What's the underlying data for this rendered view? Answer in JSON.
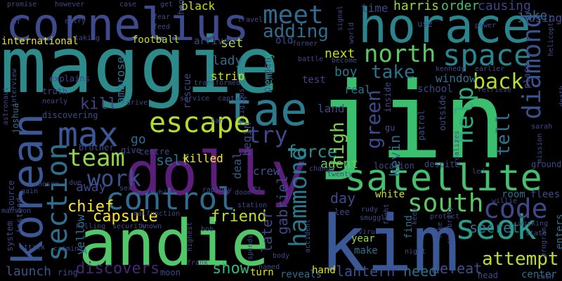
{
  "word_cloud": {
    "background": "#000000",
    "words": [
      {
        "text": "maggie",
        "color": "#2c8a8b"
      },
      {
        "text": "jin",
        "color": "#3bbf6e"
      },
      {
        "text": "kim",
        "color": "#3b5896"
      },
      {
        "text": "horace",
        "color": "#2a848e"
      },
      {
        "text": "andie",
        "color": "#52c769"
      },
      {
        "text": "dolly",
        "color": "#5a1f7a"
      },
      {
        "text": "cornelius",
        "color": "#3d4b8c"
      },
      {
        "text": "korean",
        "color": "#3b5896"
      },
      {
        "text": "tae",
        "color": "#2b7a8e"
      },
      {
        "text": "satellite",
        "color": "#45be6f"
      },
      {
        "text": "max",
        "color": "#3b5896"
      },
      {
        "text": "control",
        "color": "#2f6c8e"
      },
      {
        "text": "section",
        "color": "#2e6f8e"
      },
      {
        "text": "seok",
        "color": "#2a9a8a"
      },
      {
        "text": "escape",
        "color": "#b4de2c"
      },
      {
        "text": "code",
        "color": "#3f4889"
      },
      {
        "text": "meet",
        "color": "#2f6b8e"
      },
      {
        "text": "space",
        "color": "#2a848e"
      },
      {
        "text": "north",
        "color": "#5cc863"
      },
      {
        "text": "diamond",
        "color": "#3b518b"
      },
      {
        "text": "south",
        "color": "#5cc863"
      },
      {
        "text": "team",
        "color": "#90d743"
      },
      {
        "text": "hammond",
        "color": "#2a788e"
      },
      {
        "text": "back",
        "color": "#b8de29"
      },
      {
        "text": "help",
        "color": "#2ab07f"
      },
      {
        "text": "work",
        "color": "#3b518b"
      },
      {
        "text": "try",
        "color": "#3f4889"
      },
      {
        "text": "take",
        "color": "#2c728e"
      },
      {
        "text": "green",
        "color": "#3e4a89"
      },
      {
        "text": "adding",
        "color": "#2f6c8e"
      },
      {
        "text": "attempt",
        "color": "#b8de29"
      },
      {
        "text": "force",
        "color": "#2c8a8b"
      },
      {
        "text": "tell",
        "color": "#2a768e"
      },
      {
        "text": "high",
        "color": "#7ad151"
      },
      {
        "text": "friend",
        "color": "#c2df23"
      },
      {
        "text": "capsule",
        "color": "#fde725"
      },
      {
        "text": "discovers",
        "color": "#482576"
      },
      {
        "text": "show",
        "color": "#35b779"
      },
      {
        "text": "kill",
        "color": "#414287"
      },
      {
        "text": "chief",
        "color": "#fde725"
      },
      {
        "text": "self",
        "color": "#2f6c8e"
      },
      {
        "text": "day",
        "color": "#3e4a89"
      },
      {
        "text": "away",
        "color": "#3e4a89"
      },
      {
        "text": "later",
        "color": "#3f4889"
      },
      {
        "text": "gabriel",
        "color": "#3e4989"
      },
      {
        "text": "kevin",
        "color": "#31678e"
      },
      {
        "text": "secret",
        "color": "#2a788e"
      },
      {
        "text": "defeat",
        "color": "#3b518b"
      },
      {
        "text": "lantern",
        "color": "#3b518b"
      },
      {
        "text": "need",
        "color": "#2e6d8e"
      },
      {
        "text": "launch",
        "color": "#3a538b"
      },
      {
        "text": "set",
        "color": "#b8de29"
      },
      {
        "text": "next",
        "color": "#bddf26"
      },
      {
        "text": "boy",
        "color": "#297b8e"
      },
      {
        "text": "lady",
        "color": "#2f6c8e"
      },
      {
        "text": "memory",
        "color": "#26ad81"
      },
      {
        "text": "ambrose",
        "color": "#2c728e"
      },
      {
        "text": "yellow",
        "color": "#2c728e"
      },
      {
        "text": "agent",
        "color": "#65cb5e"
      },
      {
        "text": "go",
        "color": "#31688e"
      },
      {
        "text": "killed",
        "color": "#fde725"
      },
      {
        "text": "time",
        "color": "#3f4889"
      },
      {
        "text": "harris",
        "color": "#9bd93c"
      },
      {
        "text": "order",
        "color": "#48c16e"
      },
      {
        "text": "causing",
        "color": "#414487"
      },
      {
        "text": "jake",
        "color": "#2c728e"
      },
      {
        "text": "using",
        "color": "#3e4a89"
      },
      {
        "text": "school",
        "color": "#3e4989"
      },
      {
        "text": "window",
        "color": "#2c728e"
      },
      {
        "text": "land",
        "color": "#3e4a89"
      },
      {
        "text": "crew",
        "color": "#3b528b"
      },
      {
        "text": "deal",
        "color": "#38598c"
      },
      {
        "text": "begin",
        "color": "#3e4a89"
      },
      {
        "text": "strip",
        "color": "#cde11d"
      },
      {
        "text": "rescue",
        "color": "#3f4889"
      },
      {
        "text": "real",
        "color": "#2c728e"
      },
      {
        "text": "test",
        "color": "#414487"
      },
      {
        "text": "oxygen",
        "color": "#3f4889"
      },
      {
        "text": "find",
        "color": "#2c728e"
      },
      {
        "text": "make",
        "color": "#2c728e"
      },
      {
        "text": "year",
        "color": "#8fd744"
      },
      {
        "text": "white",
        "color": "#c8e020"
      },
      {
        "text": "room",
        "color": "#2e6d8e"
      },
      {
        "text": "flees",
        "color": "#3f4889"
      },
      {
        "text": "enters",
        "color": "#2c728e"
      },
      {
        "text": "center",
        "color": "#2c728e"
      },
      {
        "text": "hand",
        "color": "#e5e419"
      },
      {
        "text": "turn",
        "color": "#ddE318"
      },
      {
        "text": "reveals",
        "color": "#2e6d8e"
      },
      {
        "text": "football",
        "color": "#c2df23"
      },
      {
        "text": "arrives",
        "color": "#3f4889"
      },
      {
        "text": "black",
        "color": "#c8e020"
      },
      {
        "text": "old",
        "color": "#3f4889"
      },
      {
        "text": "international",
        "color": "#e5e419"
      },
      {
        "text": "mr",
        "color": "#3f4889"
      },
      {
        "text": "explains",
        "color": "#3f4889"
      },
      {
        "text": "truth",
        "color": "#3f4889"
      },
      {
        "text": "discovering",
        "color": "#3e4a89"
      },
      {
        "text": "joshua",
        "color": "#2c728e"
      },
      {
        "text": "brother",
        "color": "#3f4889"
      },
      {
        "text": "give",
        "color": "#3f4889"
      },
      {
        "text": "centre",
        "color": "#3f4889"
      },
      {
        "text": "location",
        "color": "#3e4a89"
      },
      {
        "text": "despite",
        "color": "#3f4889"
      },
      {
        "text": "ground",
        "color": "#3f4889"
      },
      {
        "text": "ring",
        "color": "#3e4a89"
      },
      {
        "text": "moon",
        "color": "#3f4889"
      },
      {
        "text": "source",
        "color": "#3f4889"
      },
      {
        "text": "instead",
        "color": "#3f4889"
      },
      {
        "text": "system",
        "color": "#3e4a89"
      },
      {
        "text": "gain",
        "color": "#3e4a89"
      },
      {
        "text": "due",
        "color": "#3e4a89"
      },
      {
        "text": "sex",
        "color": "#3e4a89"
      },
      {
        "text": "lee",
        "color": "#3f4889"
      },
      {
        "text": "rudy",
        "color": "#3e4a89"
      },
      {
        "text": "virus",
        "color": "#3e4a89"
      },
      {
        "text": "protect",
        "color": "#3e4a89"
      },
      {
        "text": "bob",
        "color": "#3e4a89"
      },
      {
        "text": "frank",
        "color": "#3e4a89"
      },
      {
        "text": "mansion",
        "color": "#3e4a89"
      },
      {
        "text": "shoot",
        "color": "#3e4a89"
      },
      {
        "text": "travel",
        "color": "#3e4a89"
      },
      {
        "text": "signal",
        "color": "#3e4a89"
      },
      {
        "text": "battle",
        "color": "#3e4a89"
      },
      {
        "text": "use",
        "color": "#3e4a89"
      },
      {
        "text": "inside",
        "color": "#3e4a89"
      },
      {
        "text": "patrol",
        "color": "#3e4a89"
      },
      {
        "text": "outside",
        "color": "#3e4a89"
      },
      {
        "text": "gu",
        "color": "#3e4a89"
      },
      {
        "text": "place",
        "color": "#3e4a89"
      },
      {
        "text": "working",
        "color": "#3e4a89"
      },
      {
        "text": "state",
        "color": "#3e4a89"
      },
      {
        "text": "promise",
        "color": "#3e4a89"
      },
      {
        "text": "however",
        "color": "#3e4a89"
      },
      {
        "text": "case",
        "color": "#3e4a89"
      },
      {
        "text": "get",
        "color": "#3e4a89"
      },
      {
        "text": "fear",
        "color": "#3e4a89"
      },
      {
        "text": "feed",
        "color": "#3e4a89"
      },
      {
        "text": "entry",
        "color": "#3e4a89"
      },
      {
        "text": "taking",
        "color": "#3e4a89"
      },
      {
        "text": "nearly",
        "color": "#3e4a89"
      },
      {
        "text": "attack",
        "color": "#3e4a89"
      },
      {
        "text": "interview",
        "color": "#3e4a89"
      },
      {
        "text": "astronaut",
        "color": "#3e4a89"
      },
      {
        "text": "chosen",
        "color": "#3e4a89"
      },
      {
        "text": "drive",
        "color": "#3e4a89"
      },
      {
        "text": "service",
        "color": "#3e4a89"
      },
      {
        "text": "fan",
        "color": "#3e4a89"
      },
      {
        "text": "capture",
        "color": "#3e4a89"
      },
      {
        "text": "religious",
        "color": "#3e4a89"
      },
      {
        "text": "transformed",
        "color": "#3e4a89"
      },
      {
        "text": "former",
        "color": "#3e4a89"
      },
      {
        "text": "become",
        "color": "#3e4a89"
      },
      {
        "text": "kennedy",
        "color": "#3e4a89"
      },
      {
        "text": "earlier",
        "color": "#3e4a89"
      },
      {
        "text": "retrieve",
        "color": "#3e4a89"
      },
      {
        "text": "power",
        "color": "#3e4a89"
      },
      {
        "text": "world",
        "color": "#3e4a89"
      },
      {
        "text": "helicopter",
        "color": "#3e4a89"
      },
      {
        "text": "sarah",
        "color": "#3e4a89"
      },
      {
        "text": "mission",
        "color": "#3e4a89"
      },
      {
        "text": "realizes",
        "color": "#3e4a89"
      },
      {
        "text": "twenty",
        "color": "#3e4a89"
      },
      {
        "text": "change",
        "color": "#3e4a89"
      },
      {
        "text": "led",
        "color": "#3e4a89"
      },
      {
        "text": "doom",
        "color": "#3e4a89"
      },
      {
        "text": "station",
        "color": "#3e4a89"
      },
      {
        "text": "ex",
        "color": "#3e4a89"
      },
      {
        "text": "rapidly",
        "color": "#3e4a89"
      },
      {
        "text": "meanwhile",
        "color": "#3e4a89"
      },
      {
        "text": "malfunction",
        "color": "#3e4a89"
      },
      {
        "text": "security",
        "color": "#3e4a89"
      },
      {
        "text": "killing",
        "color": "#3e4a89"
      },
      {
        "text": "known",
        "color": "#3e4a89"
      },
      {
        "text": "criminal",
        "color": "#3e4a89"
      },
      {
        "text": "highest",
        "color": "#3e4a89"
      },
      {
        "text": "spends",
        "color": "#3e4a89"
      },
      {
        "text": "named",
        "color": "#3e4a89"
      },
      {
        "text": "body",
        "color": "#3e4a89"
      },
      {
        "text": "accident",
        "color": "#3e4a89"
      },
      {
        "text": "smuggler",
        "color": "#3e4a89"
      },
      {
        "text": "night",
        "color": "#3e4a89"
      },
      {
        "text": "fake",
        "color": "#3e4a89"
      },
      {
        "text": "celebrity",
        "color": "#3e4a89"
      },
      {
        "text": "head",
        "color": "#3e4a89"
      },
      {
        "text": "program",
        "color": "#3e4a89"
      },
      {
        "text": "zach",
        "color": "#3e4a89"
      },
      {
        "text": "willie",
        "color": "#3e4a89"
      },
      {
        "text": "death",
        "color": "#3e4a89"
      },
      {
        "text": "keep",
        "color": "#3e4a89"
      },
      {
        "text": "fight",
        "color": "#3e4a89"
      }
    ]
  }
}
